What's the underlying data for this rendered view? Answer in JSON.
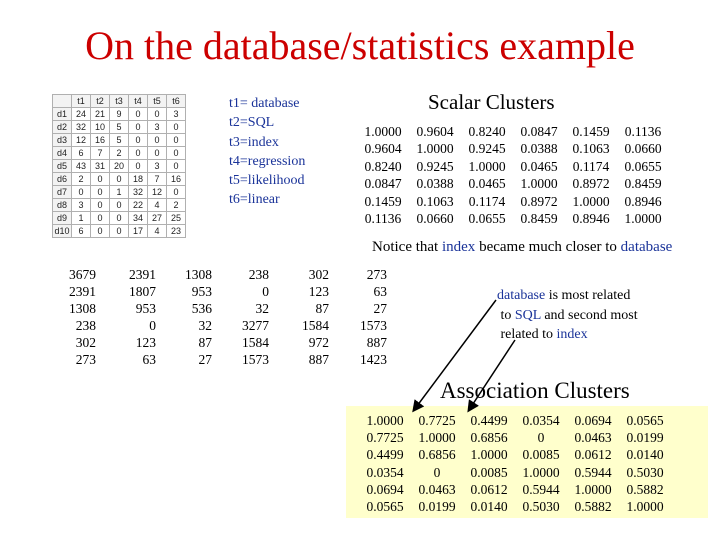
{
  "title": "On the database/statistics example",
  "small_table": {
    "columns": [
      "",
      "t1",
      "t2",
      "t3",
      "t4",
      "t5",
      "t6"
    ],
    "rows": [
      [
        "d1",
        "24",
        "21",
        "9",
        "0",
        "0",
        "3"
      ],
      [
        "d2",
        "32",
        "10",
        "5",
        "0",
        "3",
        "0"
      ],
      [
        "d3",
        "12",
        "16",
        "5",
        "0",
        "0",
        "0"
      ],
      [
        "d4",
        "6",
        "7",
        "2",
        "0",
        "0",
        "0"
      ],
      [
        "d5",
        "43",
        "31",
        "20",
        "0",
        "3",
        "0"
      ],
      [
        "d6",
        "2",
        "0",
        "0",
        "18",
        "7",
        "16"
      ],
      [
        "d7",
        "0",
        "0",
        "1",
        "32",
        "12",
        "0"
      ],
      [
        "d8",
        "3",
        "0",
        "0",
        "22",
        "4",
        "2"
      ],
      [
        "d9",
        "1",
        "0",
        "0",
        "34",
        "27",
        "25"
      ],
      [
        "d10",
        "6",
        "0",
        "0",
        "17",
        "4",
        "23"
      ]
    ]
  },
  "definitions": [
    "t1= database",
    "t2=SQL",
    "t3=index",
    "t4=regression",
    "t5=likelihood",
    "t6=linear"
  ],
  "scalar_title": "Scalar  Clusters",
  "scalar_matrix": [
    [
      "1.0000",
      "0.9604",
      "0.8240",
      "0.0847",
      "0.1459",
      "0.1136"
    ],
    [
      "0.9604",
      "1.0000",
      "0.9245",
      "0.0388",
      "0.1063",
      "0.0660"
    ],
    [
      "0.8240",
      "0.9245",
      "1.0000",
      "0.0465",
      "0.1174",
      "0.0655"
    ],
    [
      "0.0847",
      "0.0388",
      "0.0465",
      "1.0000",
      "0.8972",
      "0.8459"
    ],
    [
      "0.1459",
      "0.1063",
      "0.1174",
      "0.8972",
      "1.0000",
      "0.8946"
    ],
    [
      "0.1136",
      "0.0660",
      "0.0655",
      "0.8459",
      "0.8946",
      "1.0000"
    ]
  ],
  "notice": {
    "prefix": "Notice that ",
    "index": "index",
    "middle": " became much closer to ",
    "database": "database"
  },
  "raw_matrix": [
    [
      "3679",
      "2391",
      "1308",
      "238",
      "302",
      "273"
    ],
    [
      "2391",
      "1807",
      "953",
      "0",
      "123",
      "63"
    ],
    [
      "1308",
      "953",
      "536",
      "32",
      "87",
      "27"
    ],
    [
      "238",
      "0",
      "32",
      "3277",
      "1584",
      "1573"
    ],
    [
      "302",
      "123",
      "87",
      "1584",
      "972",
      "887"
    ],
    [
      "273",
      "63",
      "27",
      "1573",
      "887",
      "1423"
    ]
  ],
  "related_note": {
    "database": "database",
    "t1": " is most related",
    "to": "to ",
    "sql": "SQL",
    "t2": " and second most",
    "t3": "related to ",
    "index": "index"
  },
  "assoc_title": "Association Clusters",
  "assoc_matrix": [
    [
      "1.0000",
      "0.7725",
      "0.4499",
      "0.0354",
      "0.0694",
      "0.0565"
    ],
    [
      "0.7725",
      "1.0000",
      "0.6856",
      "0",
      "0.0463",
      "0.0199"
    ],
    [
      "0.4499",
      "0.6856",
      "1.0000",
      "0.0085",
      "0.0612",
      "0.0140"
    ],
    [
      "0.0354",
      "0",
      "0.0085",
      "1.0000",
      "0.5944",
      "0.5030"
    ],
    [
      "0.0694",
      "0.0463",
      "0.0612",
      "0.5944",
      "1.0000",
      "0.5882"
    ],
    [
      "0.0565",
      "0.0199",
      "0.0140",
      "0.5030",
      "0.5882",
      "1.0000"
    ]
  ],
  "colors": {
    "title": "#cc0000",
    "highlight": "#1a3399",
    "assoc_bg": "#ffffcc"
  }
}
